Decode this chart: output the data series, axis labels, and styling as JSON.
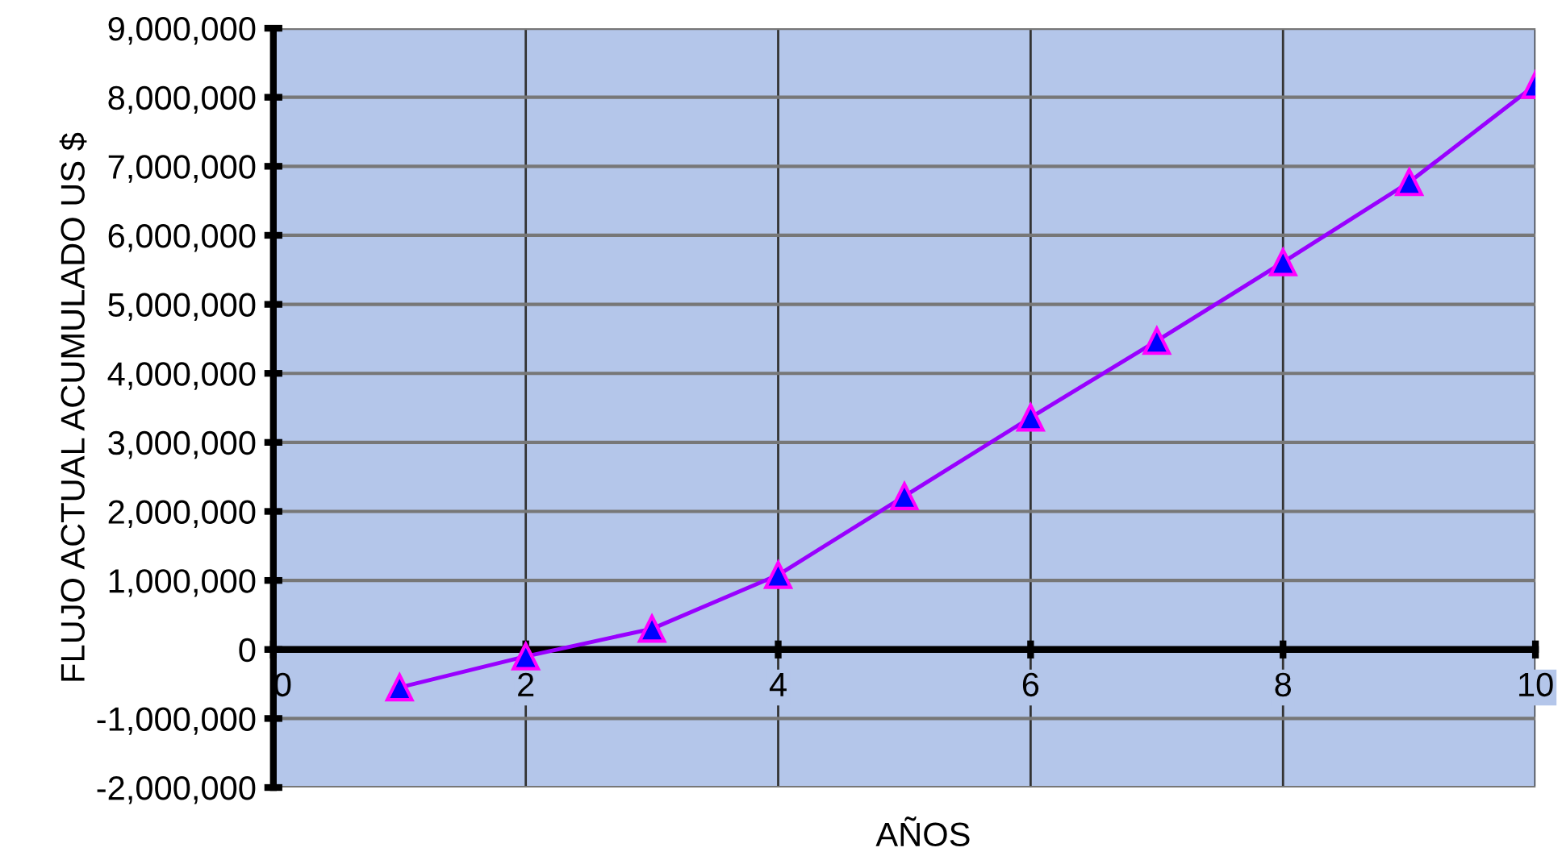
{
  "chart_data": {
    "type": "line",
    "xlabel": "AÑOS",
    "ylabel": "FLUJO ACTUAL ACUMULADO US $",
    "x": [
      1,
      2,
      3,
      4,
      5,
      6,
      7,
      8,
      9,
      10
    ],
    "series": [
      {
        "color": "#9900ff",
        "values": [
          -550000,
          -100000,
          300000,
          1080000,
          2220000,
          3360000,
          4470000,
          5610000,
          6770000,
          8180000
        ]
      }
    ],
    "marker": "triangle",
    "xlim": [
      0,
      10
    ],
    "xticks": [
      0,
      2,
      4,
      6,
      8,
      10
    ],
    "ylim": [
      -2000000,
      9000000
    ],
    "yticks": [
      {
        "value": -2000000,
        "label": "-2,000,000"
      },
      {
        "value": -1000000,
        "label": "-1,000,000"
      },
      0,
      {
        "value": 1000000,
        "label": "1,000,000"
      },
      {
        "value": 2000000,
        "label": "2,000,000"
      },
      {
        "value": 3000000,
        "label": "3,000,000"
      },
      {
        "value": 4000000,
        "label": "4,000,000"
      },
      {
        "value": 5000000,
        "label": "5,000,000"
      },
      {
        "value": 6000000,
        "label": "6,000,000"
      },
      {
        "value": 7000000,
        "label": "7,000,000"
      },
      {
        "value": 8000000,
        "label": "8,000,000"
      },
      {
        "value": 9000000,
        "label": "9,000,000"
      }
    ],
    "grid": true
  }
}
